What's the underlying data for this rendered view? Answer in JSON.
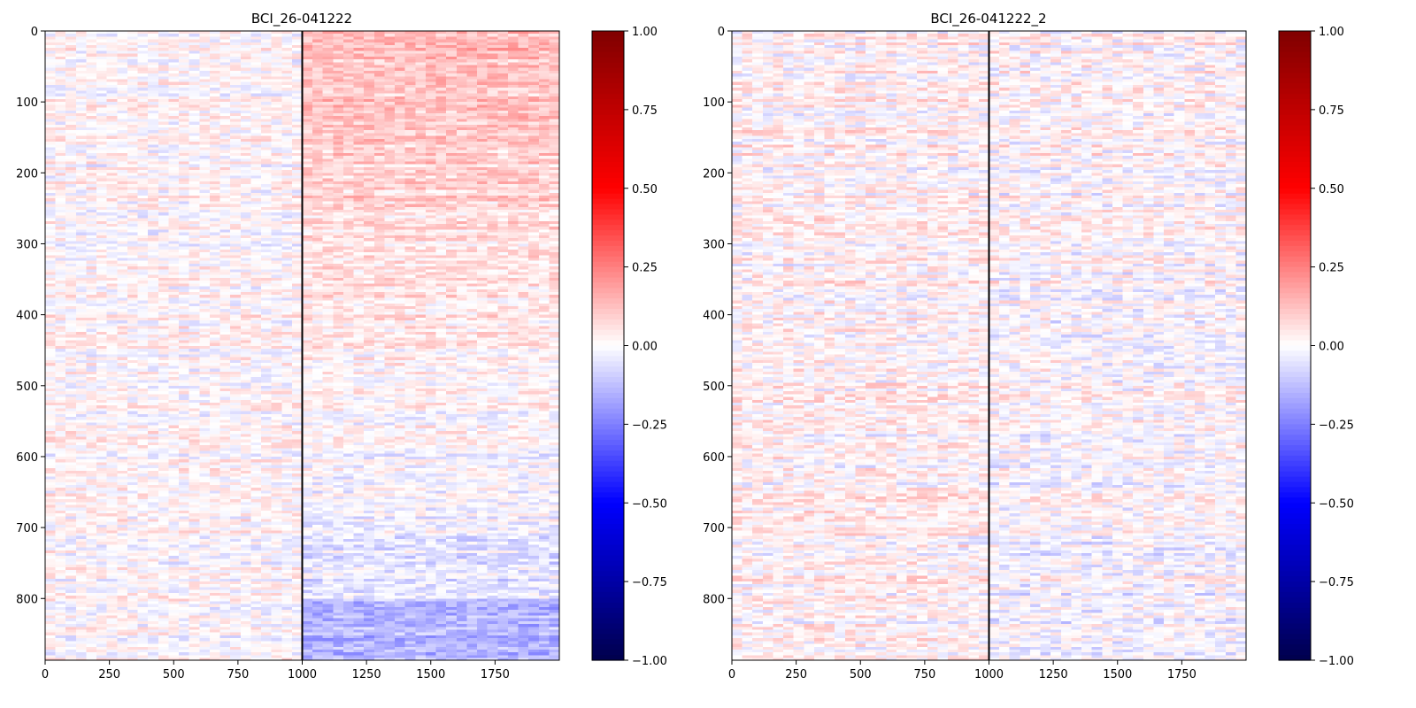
{
  "chart_data": [
    {
      "type": "heatmap",
      "title": "BCI_26-041222",
      "xlabel": "",
      "ylabel": "",
      "xlim": [
        0,
        2000
      ],
      "ylim": [
        887,
        0
      ],
      "x_ticks": [
        0,
        250,
        500,
        750,
        1000,
        1250,
        1500,
        1750
      ],
      "y_ticks": [
        0,
        100,
        200,
        300,
        400,
        500,
        600,
        700,
        800
      ],
      "vline_x": 1000,
      "colormap": "seismic",
      "colorbar": {
        "vmin": -1.0,
        "vmax": 1.0,
        "ticks": [
          "1.00",
          "0.75",
          "0.50",
          "0.25",
          "0.00",
          "−0.25",
          "−0.50",
          "−0.75",
          "−1.00"
        ]
      },
      "pattern": {
        "noise_amplitude": 0.07,
        "before_event_mean": 0.01,
        "after_event_mean_top": 0.14,
        "after_event_mean_bottom": -0.08,
        "after_event_mean_bottom_edge": -0.14
      }
    },
    {
      "type": "heatmap",
      "title": "BCI_26-041222_2",
      "xlabel": "",
      "ylabel": "",
      "xlim": [
        0,
        2000
      ],
      "ylim": [
        887,
        0
      ],
      "x_ticks": [
        0,
        250,
        500,
        750,
        1000,
        1250,
        1500,
        1750
      ],
      "y_ticks": [
        0,
        100,
        200,
        300,
        400,
        500,
        600,
        700,
        800
      ],
      "vline_x": 1000,
      "colormap": "seismic",
      "colorbar": {
        "vmin": -1.0,
        "vmax": 1.0,
        "ticks": [
          "1.00",
          "0.75",
          "0.50",
          "0.25",
          "0.00",
          "−0.25",
          "−0.50",
          "−0.75",
          "−1.00"
        ]
      },
      "pattern": {
        "noise_amplitude": 0.08,
        "before_event_mean": 0.02,
        "after_event_mean_top": 0.02,
        "after_event_mean_bottom": -0.02,
        "after_event_mean_bottom_edge": -0.02
      }
    }
  ]
}
